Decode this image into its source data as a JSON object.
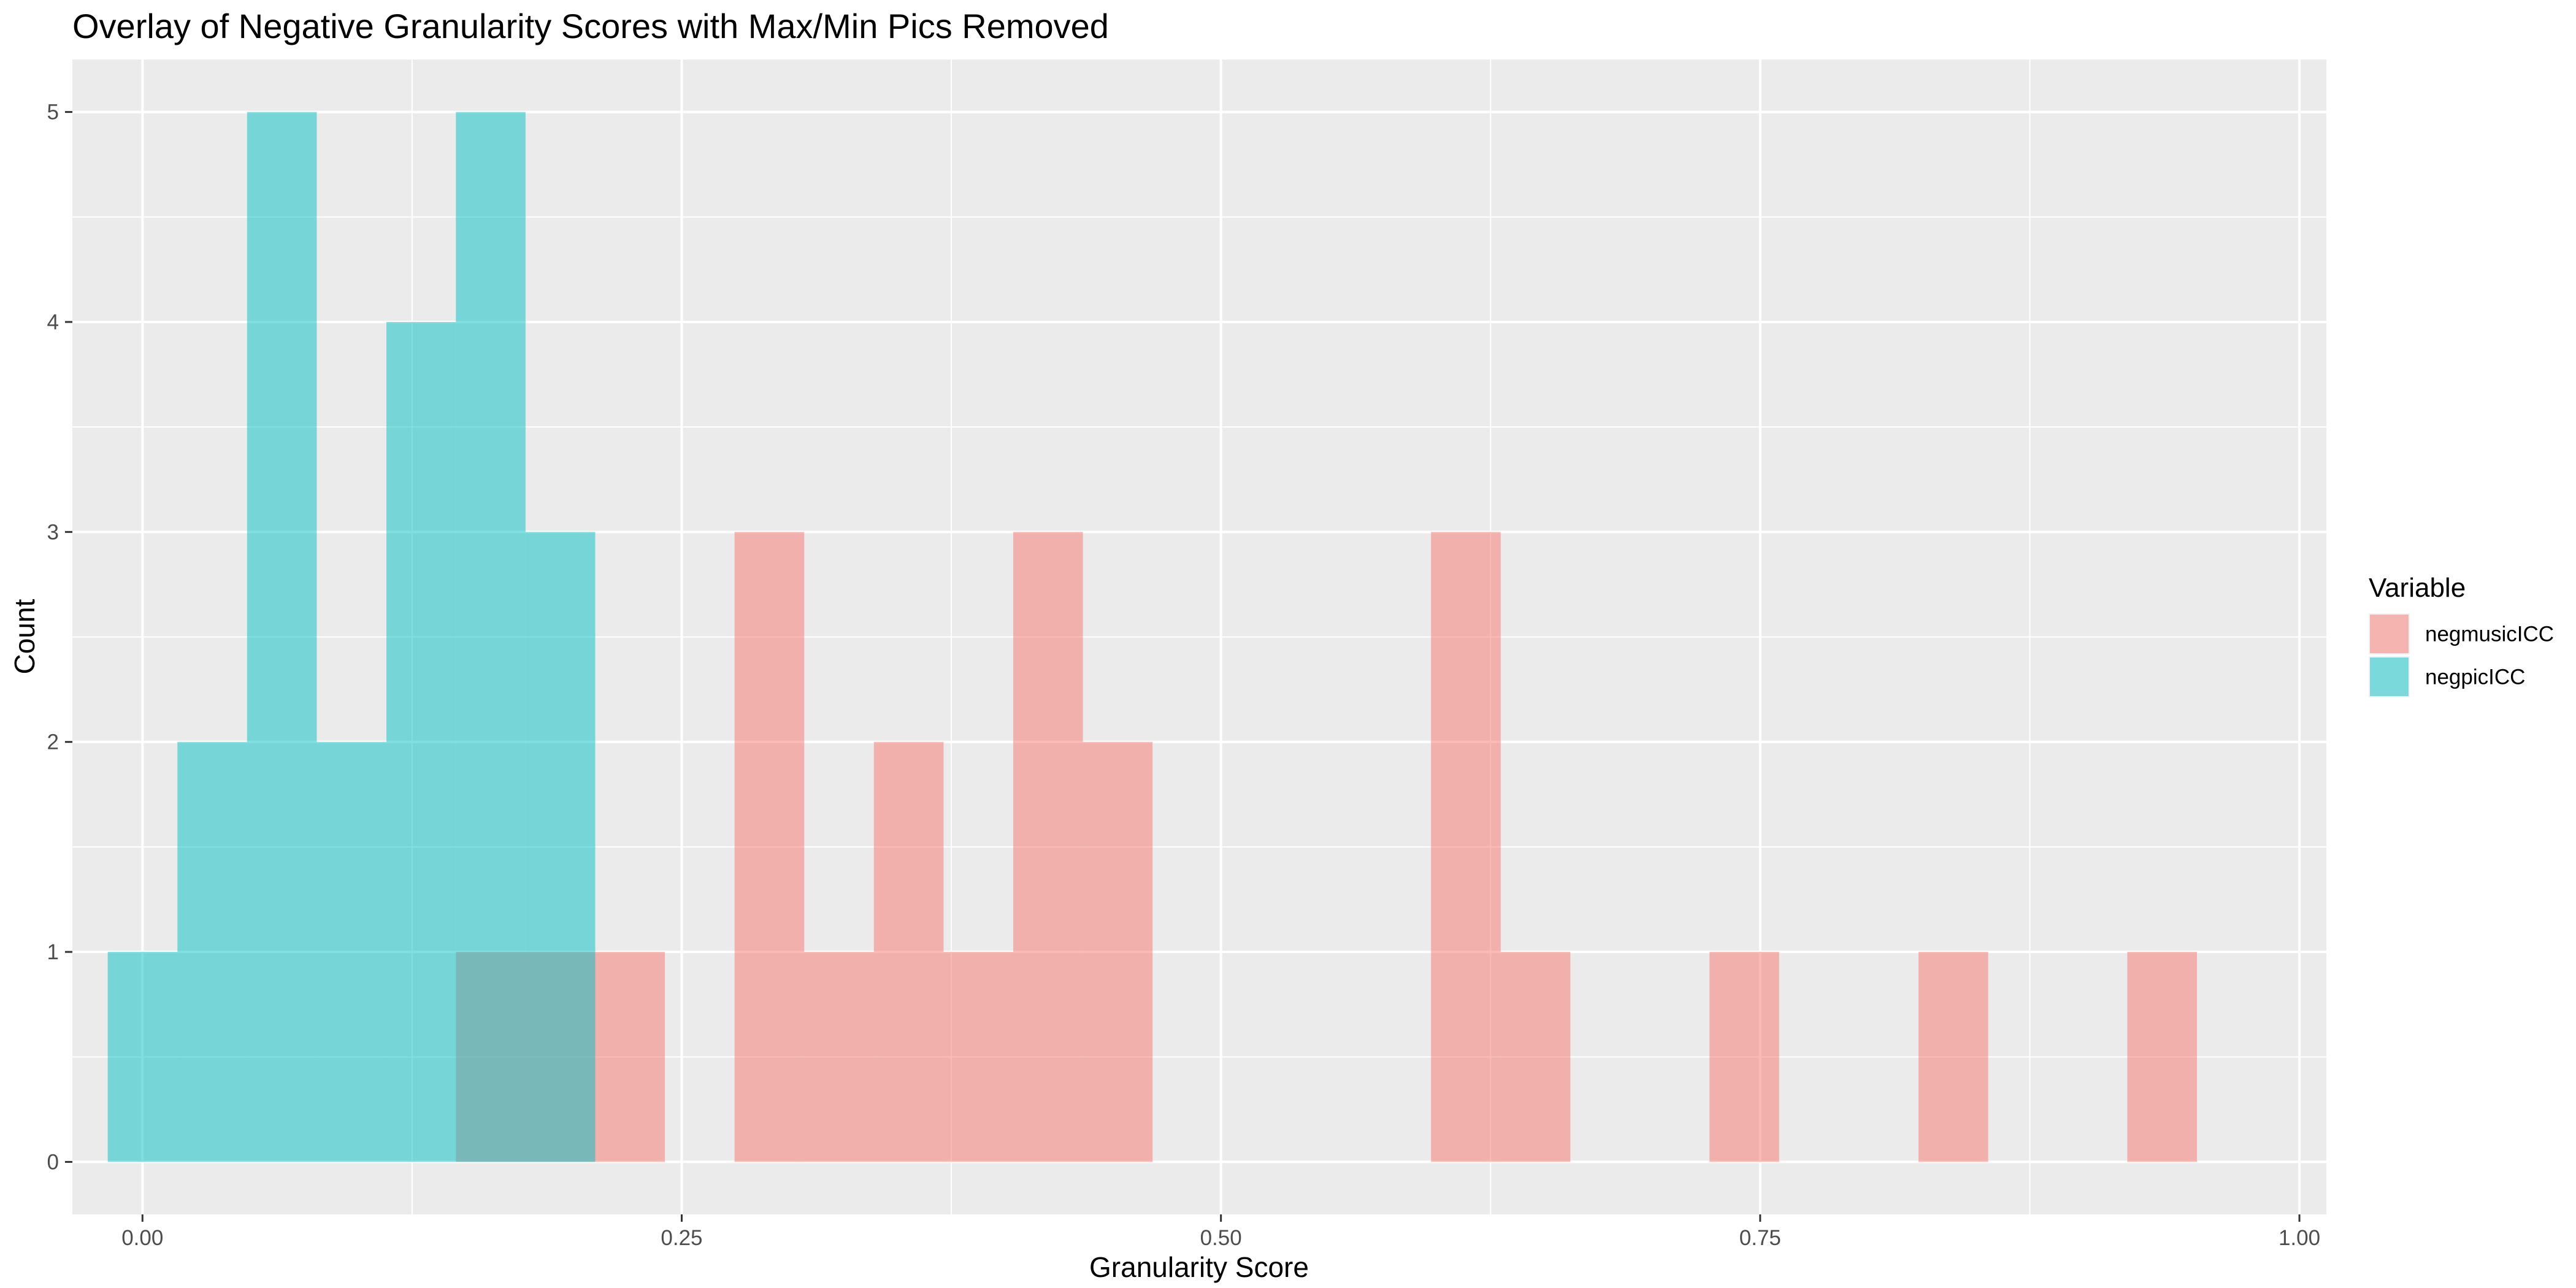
{
  "chart_data": {
    "type": "histogram",
    "title": "Overlay of Negative Granularity Scores with Max/Min Pics Removed",
    "xlabel": "Granularity Score",
    "ylabel": "Count",
    "xlim": [
      -0.0325,
      1.0125
    ],
    "ylim": [
      -0.25,
      5.25
    ],
    "x_ticks": [
      0.0,
      0.25,
      0.5,
      0.75,
      1.0
    ],
    "x_tick_labels": [
      "0.00",
      "0.25",
      "0.50",
      "0.75",
      "1.00"
    ],
    "y_ticks": [
      0,
      1,
      2,
      3,
      4,
      5
    ],
    "y_tick_labels": [
      "0",
      "1",
      "2",
      "3",
      "4",
      "5"
    ],
    "grid": true,
    "legend": {
      "title": "Variable",
      "position": "right"
    },
    "bin_width": 0.0323,
    "bin_start": -0.0161,
    "series": [
      {
        "name": "negmusicICC",
        "color": "#F8766D",
        "opacity": 0.5,
        "bins": [
          {
            "x0": 0.1453,
            "x1": 0.1776,
            "count": 1
          },
          {
            "x0": 0.1776,
            "x1": 0.2099,
            "count": 1
          },
          {
            "x0": 0.2099,
            "x1": 0.2422,
            "count": 1
          },
          {
            "x0": 0.2745,
            "x1": 0.3068,
            "count": 3
          },
          {
            "x0": 0.3068,
            "x1": 0.3391,
            "count": 1
          },
          {
            "x0": 0.3391,
            "x1": 0.3714,
            "count": 2
          },
          {
            "x0": 0.3714,
            "x1": 0.4037,
            "count": 1
          },
          {
            "x0": 0.4037,
            "x1": 0.436,
            "count": 3
          },
          {
            "x0": 0.436,
            "x1": 0.4683,
            "count": 2
          },
          {
            "x0": 0.5974,
            "x1": 0.6297,
            "count": 3
          },
          {
            "x0": 0.6297,
            "x1": 0.662,
            "count": 1
          },
          {
            "x0": 0.7265,
            "x1": 0.7588,
            "count": 1
          },
          {
            "x0": 0.8234,
            "x1": 0.8557,
            "count": 1
          },
          {
            "x0": 0.9202,
            "x1": 0.9525,
            "count": 1
          }
        ]
      },
      {
        "name": "negpicICC",
        "color": "#00BFC4",
        "opacity": 0.5,
        "bins": [
          {
            "x0": -0.0161,
            "x1": 0.0162,
            "count": 1
          },
          {
            "x0": 0.0162,
            "x1": 0.0485,
            "count": 2
          },
          {
            "x0": 0.0485,
            "x1": 0.0808,
            "count": 5
          },
          {
            "x0": 0.0808,
            "x1": 0.1131,
            "count": 2
          },
          {
            "x0": 0.1131,
            "x1": 0.1453,
            "count": 4
          },
          {
            "x0": 0.1453,
            "x1": 0.1776,
            "count": 5
          },
          {
            "x0": 0.1776,
            "x1": 0.2099,
            "count": 3
          }
        ]
      }
    ]
  }
}
